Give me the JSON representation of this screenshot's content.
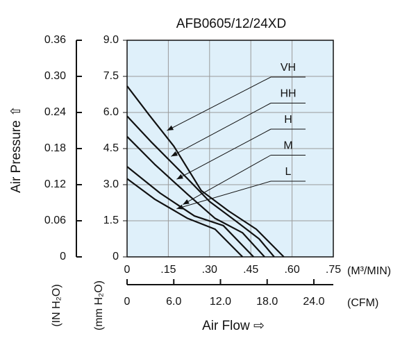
{
  "chart_data": {
    "type": "line",
    "title": "AFB0605/12/24XD",
    "y_label": "Air Pressure ⇧",
    "y_unit": "(mm H₂O)",
    "y2_unit": "(IN H₂O)",
    "x_label": "Air Flow ⇨",
    "x_unit": "(M³/MIN)",
    "x2_unit": "(CFM)",
    "xlim": [
      0,
      0.75
    ],
    "xticks": [
      0,
      {
        "value": 0.15,
        "label": ".15"
      },
      {
        "value": 0.3,
        "label": ".30"
      },
      {
        "value": 0.45,
        "label": ".45"
      },
      {
        "value": 0.6,
        "label": ".60"
      },
      {
        "value": 0.75,
        "label": ".75"
      }
    ],
    "x2lim": [
      0,
      26.5
    ],
    "x2ticks": [
      0,
      {
        "value": 6,
        "label": "6.0"
      },
      {
        "value": 12,
        "label": "12.0"
      },
      {
        "value": 18,
        "label": "18.0"
      },
      {
        "value": 24,
        "label": "24.0"
      }
    ],
    "ylim": [
      0,
      9
    ],
    "yticks": [
      0,
      1.5,
      {
        "value": 3,
        "label": "3.0"
      },
      4.5,
      {
        "value": 6,
        "label": "6.0"
      },
      7.5,
      {
        "value": 9,
        "label": "9.0"
      }
    ],
    "y2lim": [
      0,
      0.36
    ],
    "y2ticks": [
      0,
      {
        "value": 0.06,
        "label": "0.06"
      },
      0.12,
      0.18,
      0.24,
      {
        "value": 0.3,
        "label": "0.30"
      },
      0.36
    ],
    "grid": true,
    "background": "#dff0fa",
    "series": [
      {
        "name": "VH",
        "color": "#111111",
        "x": [
          0,
          0.08,
          0.17,
          0.27,
          0.37,
          0.47,
          0.57
        ],
        "values": [
          7.1,
          5.9,
          4.6,
          2.75,
          1.9,
          1.15,
          0
        ]
      },
      {
        "name": "HH",
        "color": "#111111",
        "x": [
          0,
          0.09,
          0.19,
          0.3,
          0.4,
          0.48,
          0.535
        ],
        "values": [
          5.85,
          4.75,
          3.6,
          2.3,
          1.45,
          0.75,
          0
        ]
      },
      {
        "name": "H",
        "color": "#111111",
        "x": [
          0,
          0.1,
          0.22,
          0.32,
          0.42,
          0.5
        ],
        "values": [
          5.0,
          3.85,
          2.6,
          1.6,
          1.0,
          0
        ]
      },
      {
        "name": "M",
        "color": "#111111",
        "x": [
          0,
          0.12,
          0.245,
          0.35,
          0.46
        ],
        "values": [
          3.75,
          2.65,
          1.7,
          1.3,
          0
        ]
      },
      {
        "name": "L",
        "color": "#111111",
        "x": [
          0,
          0.1,
          0.22,
          0.32,
          0.42
        ],
        "values": [
          3.25,
          2.4,
          1.6,
          1.15,
          0
        ]
      }
    ]
  }
}
